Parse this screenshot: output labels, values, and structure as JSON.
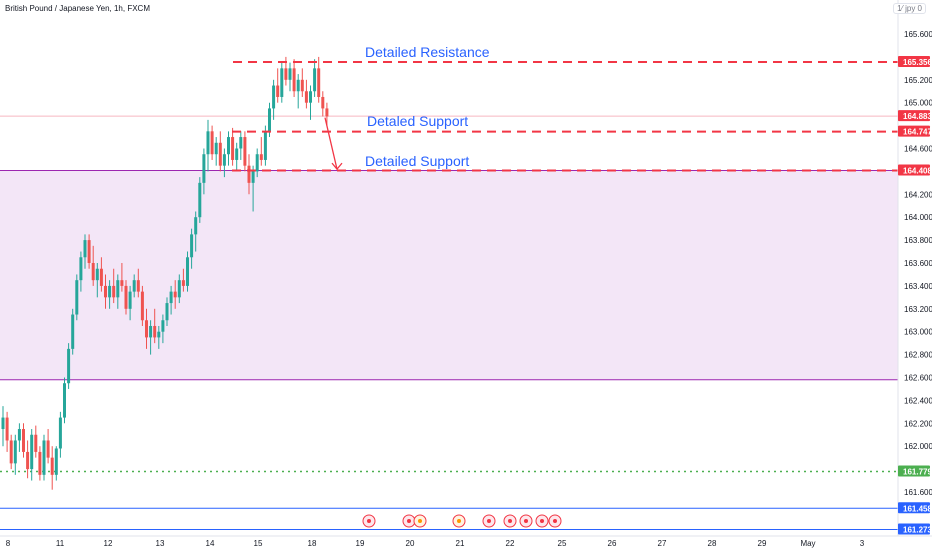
{
  "header": {
    "symbol_title": "British Pound / Japanese Yen, 1h, FXCM",
    "scale_button": "1⁄ jpy 0"
  },
  "colors": {
    "bull": "#26a69a",
    "bear": "#ef5350",
    "annotation_blue": "#2962ff",
    "level_red": "#f23645",
    "zone_fill": "#f3e6f7",
    "zone_border": "#9c27b0",
    "green_dotted": "#4caf50",
    "blue_level": "#2962ff"
  },
  "chart_data": {
    "type": "candlestick",
    "title": "British Pound / Japanese Yen, 1h, FXCM",
    "y_axis": {
      "ticks": [
        161.6,
        161.8,
        162.0,
        162.2,
        162.4,
        162.6,
        162.8,
        163.0,
        163.2,
        163.4,
        163.6,
        163.8,
        164.0,
        164.2,
        164.4,
        164.6,
        164.8,
        165.0,
        165.2,
        165.4,
        165.6
      ],
      "tick_labels": [
        "161.600",
        "",
        "162.000",
        "162.200",
        "162.400",
        "162.600",
        "162.800",
        "163.000",
        "163.200",
        "163.400",
        "163.600",
        "163.800",
        "164.000",
        "164.200",
        "",
        "164.600",
        "",
        "165.000",
        "165.200",
        "",
        "165.600"
      ],
      "range": [
        161.25,
        165.75
      ]
    },
    "x_axis": {
      "labels": [
        "8",
        "11",
        "12",
        "13",
        "14",
        "15",
        "18",
        "19",
        "20",
        "21",
        "22",
        "25",
        "26",
        "27",
        "28",
        "29",
        "May",
        "3"
      ]
    },
    "price_labels": [
      {
        "value": 165.356,
        "text": "165.356",
        "color": "#f23645"
      },
      {
        "value": 164.883,
        "text": "164.883",
        "color": "#f23645"
      },
      {
        "value": 164.747,
        "text": "164.747",
        "color": "#f23645"
      },
      {
        "value": 164.408,
        "text": "164.408",
        "color": "#f23645"
      },
      {
        "value": 161.779,
        "text": "161.779",
        "color": "#4caf50"
      },
      {
        "value": 161.458,
        "text": "161.458",
        "color": "#2962ff"
      },
      {
        "value": 161.273,
        "text": "161.273",
        "color": "#2962ff"
      }
    ],
    "levels": [
      {
        "value": 165.356,
        "label": "Detailed Resistance",
        "style": "dashed"
      },
      {
        "value": 164.747,
        "label": "Detaled Support",
        "style": "dashed"
      },
      {
        "value": 164.408,
        "label": "Detailed Support",
        "style": "dashed"
      }
    ],
    "zone": {
      "top": 164.408,
      "bottom": 162.58
    },
    "green_level": 161.779,
    "blue_levels": [
      161.458,
      161.273
    ],
    "arrow": {
      "from": 164.87,
      "to": 164.42
    },
    "candles": [
      [
        162.15,
        162.35,
        162.0,
        162.25
      ],
      [
        162.25,
        162.3,
        161.95,
        162.05
      ],
      [
        162.05,
        162.1,
        161.8,
        161.85
      ],
      [
        161.85,
        162.1,
        161.75,
        162.05
      ],
      [
        162.05,
        162.2,
        161.95,
        162.15
      ],
      [
        162.15,
        162.2,
        161.9,
        161.95
      ],
      [
        161.95,
        162.05,
        161.72,
        161.8
      ],
      [
        161.8,
        162.15,
        161.7,
        162.1
      ],
      [
        162.1,
        162.18,
        161.9,
        161.95
      ],
      [
        161.95,
        162.0,
        161.7,
        161.75
      ],
      [
        161.75,
        162.1,
        161.7,
        162.05
      ],
      [
        162.05,
        162.15,
        161.85,
        161.9
      ],
      [
        161.9,
        162.0,
        161.62,
        161.75
      ],
      [
        161.75,
        162.0,
        161.7,
        161.98
      ],
      [
        161.98,
        162.3,
        161.9,
        162.25
      ],
      [
        162.25,
        162.6,
        162.2,
        162.55
      ],
      [
        162.55,
        162.9,
        162.5,
        162.85
      ],
      [
        162.85,
        163.2,
        162.8,
        163.15
      ],
      [
        163.15,
        163.5,
        163.1,
        163.45
      ],
      [
        163.45,
        163.7,
        163.35,
        163.65
      ],
      [
        163.65,
        163.85,
        163.55,
        163.8
      ],
      [
        163.8,
        163.85,
        163.55,
        163.6
      ],
      [
        163.6,
        163.75,
        163.4,
        163.45
      ],
      [
        163.45,
        163.6,
        163.3,
        163.55
      ],
      [
        163.55,
        163.65,
        163.35,
        163.4
      ],
      [
        163.4,
        163.5,
        163.2,
        163.3
      ],
      [
        163.3,
        163.45,
        163.2,
        163.4
      ],
      [
        163.4,
        163.55,
        163.25,
        163.3
      ],
      [
        163.3,
        163.5,
        163.2,
        163.45
      ],
      [
        163.45,
        163.6,
        163.35,
        163.4
      ],
      [
        163.4,
        163.45,
        163.15,
        163.2
      ],
      [
        163.2,
        163.4,
        163.1,
        163.35
      ],
      [
        163.35,
        163.5,
        163.3,
        163.45
      ],
      [
        163.45,
        163.55,
        163.3,
        163.35
      ],
      [
        163.35,
        163.4,
        163.05,
        163.1
      ],
      [
        163.1,
        163.2,
        162.85,
        162.95
      ],
      [
        162.95,
        163.1,
        162.8,
        163.05
      ],
      [
        163.05,
        163.2,
        162.9,
        162.95
      ],
      [
        162.95,
        163.05,
        162.85,
        163.0
      ],
      [
        163.0,
        163.15,
        162.9,
        163.1
      ],
      [
        163.1,
        163.3,
        163.05,
        163.25
      ],
      [
        163.25,
        163.4,
        163.15,
        163.35
      ],
      [
        163.35,
        163.45,
        163.2,
        163.3
      ],
      [
        163.3,
        163.5,
        163.25,
        163.45
      ],
      [
        163.45,
        163.55,
        163.35,
        163.4
      ],
      [
        163.4,
        163.7,
        163.35,
        163.65
      ],
      [
        163.65,
        163.9,
        163.55,
        163.85
      ],
      [
        163.85,
        164.05,
        163.7,
        164.0
      ],
      [
        164.0,
        164.35,
        163.95,
        164.3
      ],
      [
        164.3,
        164.6,
        164.2,
        164.55
      ],
      [
        164.55,
        164.85,
        164.4,
        164.75
      ],
      [
        164.75,
        164.8,
        164.5,
        164.55
      ],
      [
        164.55,
        164.7,
        164.45,
        164.65
      ],
      [
        164.65,
        164.75,
        164.4,
        164.45
      ],
      [
        164.45,
        164.6,
        164.35,
        164.55
      ],
      [
        164.55,
        164.75,
        164.45,
        164.7
      ],
      [
        164.7,
        164.78,
        164.45,
        164.5
      ],
      [
        164.5,
        164.65,
        164.4,
        164.6
      ],
      [
        164.6,
        164.75,
        164.5,
        164.7
      ],
      [
        164.7,
        164.75,
        164.4,
        164.45
      ],
      [
        164.45,
        164.55,
        164.2,
        164.3
      ],
      [
        164.3,
        164.45,
        164.05,
        164.4
      ],
      [
        164.4,
        164.6,
        164.35,
        164.55
      ],
      [
        164.55,
        164.7,
        164.45,
        164.5
      ],
      [
        164.5,
        164.8,
        164.45,
        164.75
      ],
      [
        164.75,
        165.0,
        164.7,
        164.95
      ],
      [
        164.95,
        165.2,
        164.85,
        165.15
      ],
      [
        165.15,
        165.3,
        165.0,
        165.05
      ],
      [
        165.05,
        165.35,
        165.0,
        165.3
      ],
      [
        165.3,
        165.4,
        165.15,
        165.2
      ],
      [
        165.2,
        165.35,
        165.1,
        165.3
      ],
      [
        165.3,
        165.38,
        165.05,
        165.1
      ],
      [
        165.1,
        165.25,
        164.95,
        165.2
      ],
      [
        165.2,
        165.3,
        165.05,
        165.1
      ],
      [
        165.1,
        165.2,
        164.95,
        165.0
      ],
      [
        165.0,
        165.15,
        164.85,
        165.1
      ],
      [
        165.1,
        165.38,
        165.05,
        165.3
      ],
      [
        165.3,
        165.4,
        165.0,
        165.05
      ],
      [
        165.05,
        165.1,
        164.88,
        164.95
      ],
      [
        164.95,
        165.0,
        164.8,
        164.88
      ]
    ]
  }
}
